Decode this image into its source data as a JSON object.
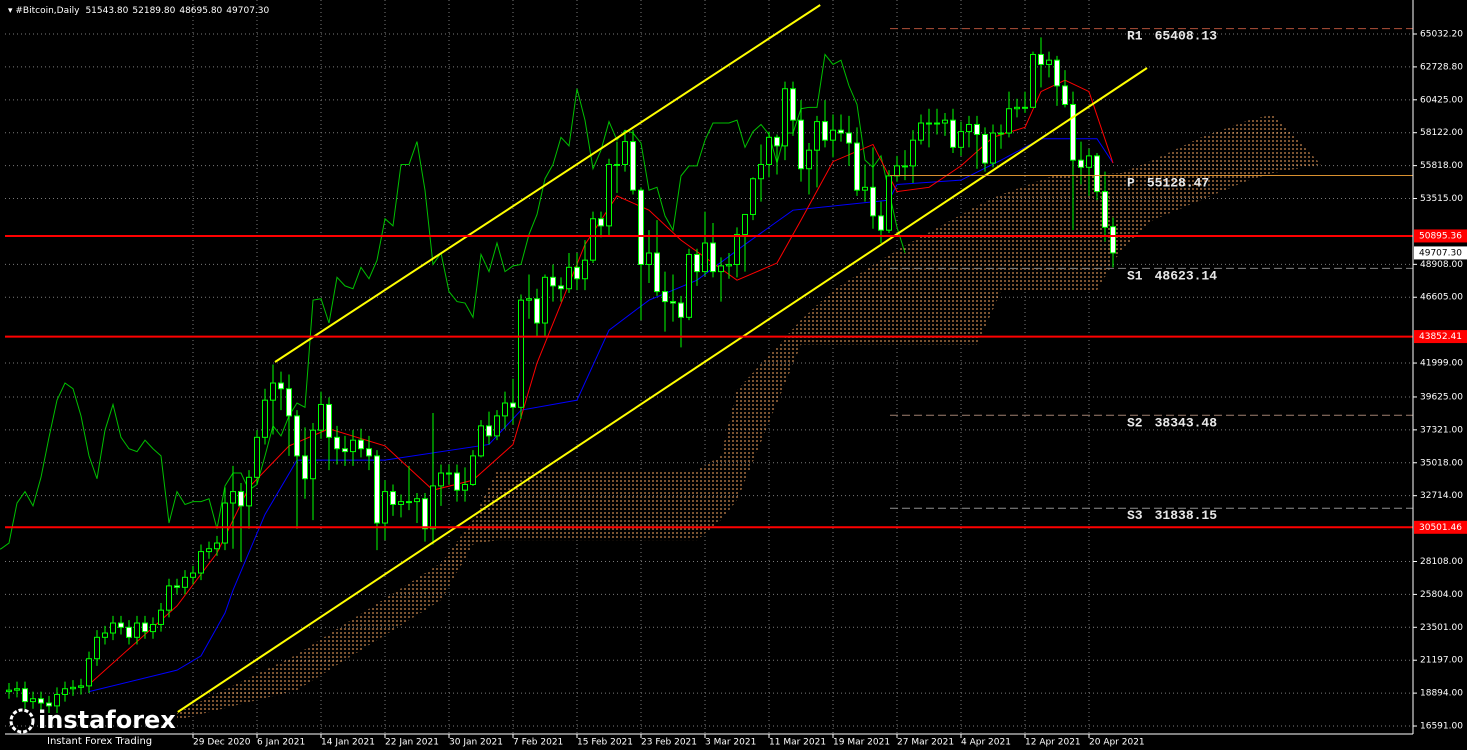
{
  "chart_data": {
    "type": "candlestick",
    "header": {
      "symbol": "#Bitcoin,Daily",
      "ohlc": [
        "51543.80",
        "52189.80",
        "48695.80",
        "49707.30"
      ]
    },
    "watermark": {
      "brand": "instaforex",
      "tagline": "Instant Forex Trading"
    },
    "x": [
      -23,
      -22,
      -21,
      -20,
      -19,
      -18,
      -17,
      -16,
      -15,
      -14,
      -13,
      -12,
      -11,
      -10,
      -9,
      -8,
      -7,
      -6,
      -5,
      -4,
      -3,
      -2,
      -1,
      0,
      1,
      2,
      3,
      4,
      5,
      6,
      7,
      8,
      9,
      10,
      11,
      12,
      13,
      14,
      15,
      16,
      17,
      18,
      19,
      20,
      21,
      22,
      23,
      24,
      25,
      26,
      27,
      28,
      29,
      30,
      31,
      32,
      33,
      34,
      35,
      36,
      37,
      38,
      39,
      40,
      41,
      42,
      43,
      44,
      45,
      46,
      47,
      48,
      49,
      50,
      51,
      52,
      53,
      54,
      55,
      56,
      57,
      58,
      59,
      60,
      61,
      62,
      63,
      64,
      65,
      66,
      67,
      68,
      69,
      70,
      71,
      72,
      73,
      74,
      75,
      76,
      77,
      78,
      79,
      80,
      81,
      82,
      83,
      84,
      85,
      86,
      87,
      88,
      89,
      90,
      91,
      92,
      93,
      94,
      95,
      96,
      97,
      98,
      99,
      100,
      101,
      102,
      103,
      104,
      105,
      106,
      107,
      108,
      109,
      110,
      111,
      112,
      113,
      114,
      115
    ],
    "open": [
      19000,
      19100,
      19200,
      18300,
      18500,
      18200,
      18000,
      18800,
      19200,
      19300,
      19400,
      21300,
      22800,
      23100,
      23800,
      23500,
      22800,
      23800,
      23200,
      23700,
      24700,
      26400,
      26300,
      27000,
      27300,
      28800,
      29000,
      29400,
      32200,
      33000,
      32000,
      34000,
      36800,
      39400,
      40600,
      40200,
      38300,
      35500,
      33900,
      37300,
      39100,
      36800,
      36000,
      35800,
      36600,
      36000,
      35500,
      30800,
      33000,
      32100,
      32300,
      32300,
      32500,
      30400,
      33400,
      34300,
      34300,
      33100,
      33500,
      35500,
      37600,
      36900,
      38300,
      39200,
      38900,
      46400,
      46500,
      44800,
      48000,
      47400,
      47200,
      48700,
      47900,
      49200,
      52100,
      51600,
      55900,
      55900,
      57500,
      54100,
      48900,
      49700,
      47000,
      46300,
      46200,
      45200,
      49600,
      48400,
      50400,
      48400,
      48800,
      48900,
      51000,
      52400,
      54900,
      55900,
      57800,
      57200,
      61200,
      59000,
      55600,
      56900,
      58900,
      57600,
      58300,
      58100,
      57400,
      54100,
      54300,
      52300,
      51300,
      55100,
      55800,
      55800,
      57600,
      58800,
      58800,
      58800,
      59000,
      57100,
      58200,
      58700,
      58000,
      56000,
      58100,
      58100,
      59800,
      59900,
      59900,
      63600,
      62900,
      63200,
      61400,
      60100,
      56200,
      55700,
      56500,
      54000,
      51543.8
    ],
    "high": [
      19600,
      19700,
      19700,
      19000,
      19000,
      18700,
      19300,
      19700,
      19800,
      19900,
      21800,
      23300,
      23600,
      24300,
      24300,
      24000,
      24300,
      24300,
      24200,
      25200,
      26900,
      26900,
      27500,
      27800,
      29300,
      29500,
      29900,
      33300,
      34800,
      33600,
      34500,
      37300,
      40200,
      41900,
      41400,
      41200,
      38700,
      37500,
      37800,
      40000,
      39600,
      37600,
      36900,
      37300,
      37400,
      36900,
      35900,
      33800,
      33500,
      32800,
      34800,
      32900,
      32900,
      38500,
      34900,
      34900,
      34900,
      34700,
      35900,
      38000,
      38600,
      38700,
      40000,
      40900,
      46800,
      48200,
      47200,
      48200,
      48900,
      48000,
      49700,
      49700,
      50600,
      52600,
      52600,
      56300,
      57500,
      58300,
      58300,
      54300,
      51300,
      52000,
      48400,
      48200,
      46700,
      50000,
      50000,
      52600,
      51800,
      49400,
      49700,
      51500,
      52400,
      55000,
      57300,
      58200,
      58000,
      61700,
      61700,
      60400,
      57400,
      59300,
      60400,
      59400,
      59400,
      59300,
      58500,
      55900,
      57100,
      53300,
      55500,
      56500,
      56900,
      58300,
      59400,
      59800,
      59800,
      59500,
      59800,
      58900,
      59300,
      59300,
      58500,
      58700,
      58700,
      61000,
      60500,
      61000,
      63800,
      64800,
      63800,
      63500,
      62500,
      61000,
      57500,
      57000,
      56700,
      55400,
      52189.8
    ],
    "low": [
      18500,
      18600,
      17800,
      17800,
      17700,
      17500,
      17500,
      18300,
      18700,
      18800,
      18900,
      20800,
      22300,
      22600,
      23000,
      22300,
      22300,
      22700,
      22700,
      23200,
      24200,
      25800,
      25800,
      26500,
      26800,
      28300,
      28500,
      28900,
      29000,
      28100,
      30400,
      33500,
      36300,
      37000,
      38700,
      35500,
      30400,
      32500,
      31000,
      36700,
      34500,
      34900,
      34800,
      34800,
      35400,
      34500,
      28900,
      29600,
      31300,
      31200,
      31700,
      30800,
      29500,
      29300,
      32000,
      33500,
      32300,
      32300,
      33400,
      35400,
      36300,
      36600,
      37400,
      37700,
      38100,
      45100,
      43800,
      43800,
      46300,
      46300,
      46900,
      47100,
      47100,
      49000,
      50800,
      50900,
      53900,
      55400,
      53800,
      45000,
      47600,
      46700,
      44200,
      44900,
      43100,
      45000,
      47400,
      48100,
      48000,
      46300,
      47900,
      48000,
      48400,
      52000,
      53300,
      55000,
      55200,
      56200,
      57900,
      54700,
      53800,
      54300,
      57100,
      56400,
      57500,
      55800,
      53700,
      53300,
      51400,
      50400,
      51100,
      54700,
      54800,
      54600,
      57300,
      57100,
      58000,
      57900,
      56700,
      56500,
      57100,
      55600,
      55400,
      55700,
      57000,
      57800,
      59200,
      59500,
      59900,
      61300,
      62000,
      60000,
      59900,
      51300,
      54500,
      53700,
      53400,
      50500,
      48695.8
    ],
    "close": [
      19100,
      19200,
      18300,
      18500,
      18200,
      18000,
      18800,
      19200,
      19300,
      19400,
      21300,
      22800,
      23100,
      23800,
      23500,
      22800,
      23800,
      23200,
      23700,
      24700,
      26400,
      26300,
      27000,
      27300,
      28800,
      29000,
      29400,
      32200,
      33000,
      32000,
      34000,
      36800,
      39400,
      40600,
      40200,
      38300,
      35500,
      33900,
      37300,
      39100,
      36800,
      36000,
      35800,
      36600,
      36000,
      35500,
      30800,
      33000,
      32100,
      32300,
      32300,
      32500,
      30400,
      33400,
      34300,
      34300,
      33100,
      33500,
      35500,
      37600,
      36900,
      38300,
      39200,
      38900,
      46400,
      46500,
      44800,
      48000,
      47400,
      47200,
      48700,
      47900,
      49200,
      52100,
      51600,
      55900,
      55900,
      57500,
      54100,
      48900,
      49700,
      47000,
      46300,
      46200,
      45200,
      49600,
      48400,
      50400,
      48400,
      48800,
      48900,
      51000,
      52400,
      54900,
      55900,
      57800,
      57200,
      61200,
      59000,
      55600,
      56900,
      58900,
      57600,
      58300,
      58100,
      57400,
      54100,
      54300,
      52300,
      51300,
      55100,
      55800,
      55800,
      57600,
      58800,
      58800,
      58800,
      59000,
      57100,
      58200,
      58700,
      58000,
      56000,
      58100,
      58100,
      59800,
      59900,
      59900,
      63600,
      62900,
      63200,
      61400,
      60100,
      56200,
      55700,
      56500,
      54000,
      51500,
      49707.3
    ],
    "candle_colors": {
      "wick": "#00ff00",
      "up": "#000000",
      "down": "#ffffff"
    },
    "ichimoku": {
      "tenkan": {
        "color": "#ff0000",
        "x": [
          -13,
          -6,
          -2,
          3,
          7,
          12,
          17,
          24,
          30,
          35,
          40,
          43,
          49,
          53,
          57,
          61,
          68,
          73,
          76,
          80,
          85,
          88,
          92,
          96,
          100,
          104,
          106,
          109,
          112,
          115
        ],
        "values": [
          19500,
          23000,
          25000,
          28700,
          33300,
          36200,
          37400,
          36200,
          33100,
          33800,
          36300,
          42000,
          50300,
          53700,
          52700,
          50600,
          47800,
          49000,
          52000,
          56100,
          57300,
          54000,
          54300,
          55800,
          57800,
          58500,
          61000,
          61800,
          61000,
          56000
        ]
      },
      "kijun": {
        "color": "#0000ff",
        "x": [
          -13,
          -2,
          1,
          4,
          5,
          9,
          13,
          24,
          37,
          41,
          48,
          52,
          57,
          63,
          69,
          75,
          87,
          88,
          96,
          101,
          106,
          113,
          115
        ],
        "values": [
          19000,
          20500,
          21500,
          24500,
          26100,
          31400,
          35200,
          35200,
          36300,
          38700,
          39400,
          44300,
          46400,
          47800,
          50300,
          52700,
          53400,
          54500,
          54800,
          56200,
          57700,
          57700,
          56000
        ]
      },
      "chikou": {
        "color": "#00c000",
        "shift": -26
      },
      "cloud": {
        "color": "#f4a460",
        "x": [
          -2,
          13,
          31,
          35,
          38,
          63,
          66,
          68,
          76,
          80,
          88,
          98,
          101,
          108,
          113,
          116,
          120,
          126,
          132,
          135,
          141
        ],
        "span_a": [
          17500,
          21600,
          28000,
          31000,
          34500,
          34500,
          35500,
          40100,
          45000,
          47100,
          49900,
          53000,
          53800,
          55200,
          55200,
          55300,
          56200,
          57800,
          59000,
          59400,
          55900
        ],
        "span_b": [
          17000,
          19100,
          25400,
          29300,
          29600,
          29600,
          31000,
          32400,
          43300,
          43300,
          43300,
          43300,
          47000,
          47100,
          47100,
          49900,
          52000,
          53400,
          54800,
          55300,
          55900
        ]
      }
    },
    "trendlines": [
      {
        "color": "#ffff00",
        "x": [
          10.25,
          78.4
        ],
        "values": [
          42072,
          67062
        ]
      },
      {
        "color": "#ffff00",
        "x": [
          -1.9,
          119.25
        ],
        "values": [
          17572,
          62652
        ]
      }
    ],
    "levels": [
      {
        "value": 50895.36,
        "label": "50895.36",
        "color": "#ff0000"
      },
      {
        "value": 43852.41,
        "label": "43852.41",
        "color": "#ff0000"
      },
      {
        "value": 30501.46,
        "label": "30501.46",
        "color": "#ff0000"
      }
    ],
    "pivots": [
      {
        "name": "R1",
        "value": 65408.13,
        "label": "65408.13",
        "color": "#b0503a",
        "dash": true
      },
      {
        "name": "P",
        "value": 55128.47,
        "label": "55128.47",
        "color": "#d89030",
        "dash": false
      },
      {
        "name": "S1",
        "value": 48623.14,
        "label": "48623.14",
        "color": "#808080",
        "dash": true
      },
      {
        "name": "S2",
        "value": 38343.48,
        "label": "38343.48",
        "color": "#a08070",
        "dash": true
      },
      {
        "name": "S3",
        "value": 31838.15,
        "label": "31838.15",
        "color": "#909090",
        "dash": true
      }
    ],
    "current_price": {
      "value": 49707.3,
      "label": "49707.30"
    },
    "xlim": [
      -23.5,
      152.5
    ],
    "ylim": [
      16032,
      67412
    ],
    "grid": true,
    "yticks": [
      {
        "value": 65032.2,
        "label": "65032.20"
      },
      {
        "value": 62728.8,
        "label": "62728.80"
      },
      {
        "value": 60425,
        "label": "60425.00"
      },
      {
        "value": 58122,
        "label": "58122.00"
      },
      {
        "value": 55818,
        "label": "55818.00"
      },
      {
        "value": 53515,
        "label": "53515.00"
      },
      {
        "value": 48908,
        "label": "48908.00"
      },
      {
        "value": 46605,
        "label": "46605.00"
      },
      {
        "value": 41999,
        "label": "41999.00"
      },
      {
        "value": 39625,
        "label": "39625.00"
      },
      {
        "value": 37321,
        "label": "37321.00"
      },
      {
        "value": 35018,
        "label": "35018.00"
      },
      {
        "value": 32714,
        "label": "32714.00"
      },
      {
        "value": 28108,
        "label": "28108.00"
      },
      {
        "value": 25804,
        "label": "25804.00"
      },
      {
        "value": 23501,
        "label": "23501.00"
      },
      {
        "value": 21197,
        "label": "21197.00"
      },
      {
        "value": 18894,
        "label": "18894.00"
      },
      {
        "value": 16591,
        "label": "16591.00"
      }
    ],
    "xticks": [
      {
        "value": 0,
        "label": "29 Dec 2020"
      },
      {
        "value": 8,
        "label": "6 Jan 2021"
      },
      {
        "value": 16,
        "label": "14 Jan 2021"
      },
      {
        "value": 24,
        "label": "22 Jan 2021"
      },
      {
        "value": 32,
        "label": "30 Jan 2021"
      },
      {
        "value": 40,
        "label": "7 Feb 2021"
      },
      {
        "value": 48,
        "label": "15 Feb 2021"
      },
      {
        "value": 56,
        "label": "23 Feb 2021"
      },
      {
        "value": 64,
        "label": "3 Mar 2021"
      },
      {
        "value": 72,
        "label": "11 Mar 2021"
      },
      {
        "value": 80,
        "label": "19 Mar 2021"
      },
      {
        "value": 88,
        "label": "27 Mar 2021"
      },
      {
        "value": 96,
        "label": "4 Apr 2021"
      },
      {
        "value": 104,
        "label": "12 Apr 2021"
      },
      {
        "value": 112,
        "label": "20 Apr 2021"
      }
    ]
  }
}
